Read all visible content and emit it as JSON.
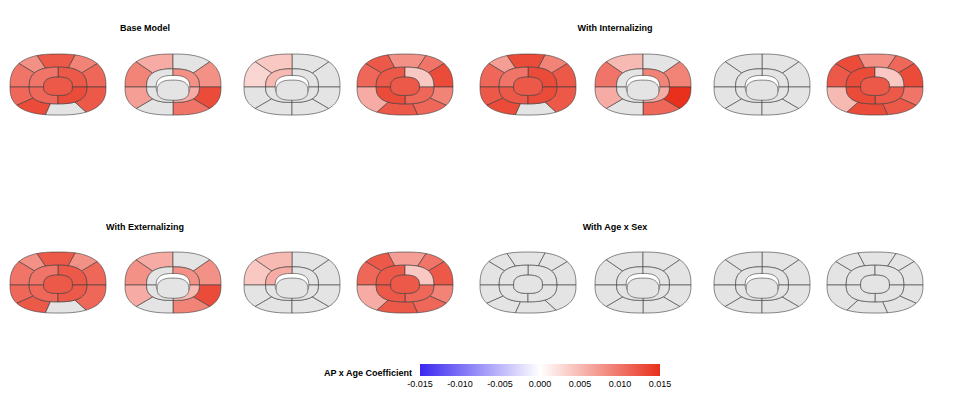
{
  "chart_data": {
    "type": "brain_map",
    "panels": [
      {
        "title": "Base Model",
        "views": [
          [
            0.011,
            0.009,
            0.012,
            0.008,
            0.01,
            0.011,
            0.013,
            null,
            0.012,
            0.012,
            0.01,
            0.011,
            0.013,
            0.012
          ],
          [
            0.009,
            0.006,
            null,
            0.008,
            0.013,
            0.01,
            null,
            0.007,
            null,
            0.008,
            0.006,
            null
          ],
          [
            null,
            null,
            0.004,
            0.003,
            null,
            null,
            null,
            null,
            null,
            0.005,
            null,
            null
          ],
          [
            0.011,
            0.012,
            0.008,
            0.01,
            0.013,
            0.009,
            0.011,
            0.012,
            0.006,
            0.012,
            0.004,
            0.011,
            0.013,
            0.012
          ]
        ]
      },
      {
        "title": "With Internalizing",
        "views": [
          [
            0.012,
            0.009,
            0.013,
            0.007,
            0.011,
            0.012,
            0.013,
            null,
            0.012,
            0.013,
            0.01,
            0.012,
            0.013,
            0.012
          ],
          [
            0.01,
            0.005,
            null,
            0.009,
            0.015,
            0.011,
            null,
            0.006,
            null,
            0.009,
            0.006,
            null
          ],
          [
            null,
            null,
            null,
            null,
            null,
            null,
            null,
            null,
            null,
            null,
            null,
            null
          ],
          [
            0.012,
            0.013,
            0.008,
            0.011,
            0.013,
            0.01,
            0.012,
            0.013,
            0.005,
            0.013,
            0.004,
            0.012,
            0.013,
            0.012
          ]
        ]
      },
      {
        "title": "With Externalizing",
        "views": [
          [
            0.011,
            0.008,
            0.012,
            0.008,
            0.01,
            0.011,
            0.012,
            null,
            0.011,
            0.012,
            0.01,
            0.011,
            0.012,
            0.012
          ],
          [
            0.008,
            0.006,
            null,
            0.008,
            0.013,
            0.009,
            null,
            0.006,
            null,
            0.008,
            0.005,
            null
          ],
          [
            null,
            null,
            0.005,
            0.004,
            null,
            null,
            null,
            null,
            null,
            0.006,
            null,
            null
          ],
          [
            0.011,
            0.012,
            0.007,
            0.01,
            0.012,
            0.009,
            0.011,
            0.012,
            0.006,
            0.012,
            0.004,
            0.011,
            0.012,
            0.012
          ]
        ]
      },
      {
        "title": "With Age x Sex",
        "views": [
          [
            null,
            null,
            null,
            null,
            null,
            null,
            null,
            null,
            null,
            null,
            null,
            null,
            null,
            null
          ],
          [
            null,
            null,
            null,
            null,
            null,
            null,
            null,
            null,
            null,
            null,
            null,
            null
          ],
          [
            null,
            null,
            null,
            null,
            null,
            null,
            null,
            null,
            null,
            null,
            null,
            null
          ],
          [
            null,
            null,
            null,
            null,
            null,
            null,
            null,
            null,
            null,
            null,
            null,
            null,
            null,
            null
          ]
        ]
      }
    ],
    "colorbar": {
      "title": "AP x Age Coefficient",
      "range": [
        -0.015,
        0.015
      ],
      "ticks": [
        -0.015,
        {
          "value": -0.01,
          "label": "-0.010"
        },
        -0.005,
        {
          "value": 0,
          "label": "0.000"
        },
        0.005,
        {
          "value": 0.01,
          "label": "0.010"
        },
        0.015
      ],
      "colors": [
        "#3b28f0",
        "#ffffff",
        "#e8301c"
      ]
    }
  }
}
